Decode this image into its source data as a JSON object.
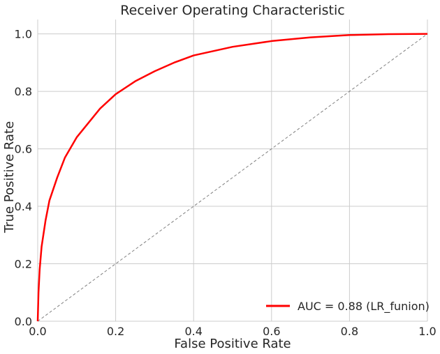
{
  "chart_data": {
    "type": "line",
    "title": "Receiver Operating Characteristic",
    "xlabel": "False Positive Rate",
    "ylabel": "True Positive Rate",
    "xlim": [
      0.0,
      1.0
    ],
    "ylim": [
      0.0,
      1.05
    ],
    "xticks": [
      "0.0",
      "0.2",
      "0.4",
      "0.6",
      "0.8",
      "1.0"
    ],
    "yticks": [
      "0.0",
      "0.2",
      "0.4",
      "0.6",
      "0.8",
      "1.0"
    ],
    "grid": true,
    "legend_position": "lower-right",
    "series": [
      {
        "name": "AUC = 0.88 (LR_funion)",
        "color": "#ff0000",
        "style": "solid",
        "x": [
          0.0,
          0.002,
          0.005,
          0.01,
          0.02,
          0.03,
          0.05,
          0.07,
          0.1,
          0.13,
          0.16,
          0.2,
          0.25,
          0.3,
          0.35,
          0.4,
          0.5,
          0.6,
          0.7,
          0.8,
          0.9,
          1.0
        ],
        "y": [
          0.0,
          0.1,
          0.18,
          0.26,
          0.35,
          0.42,
          0.5,
          0.57,
          0.64,
          0.69,
          0.74,
          0.79,
          0.835,
          0.87,
          0.9,
          0.925,
          0.955,
          0.975,
          0.988,
          0.996,
          0.999,
          1.0
        ]
      },
      {
        "name": "",
        "color": "#808080",
        "style": "dashed",
        "x": [
          0.0,
          1.0
        ],
        "y": [
          0.0,
          1.0
        ]
      }
    ]
  }
}
